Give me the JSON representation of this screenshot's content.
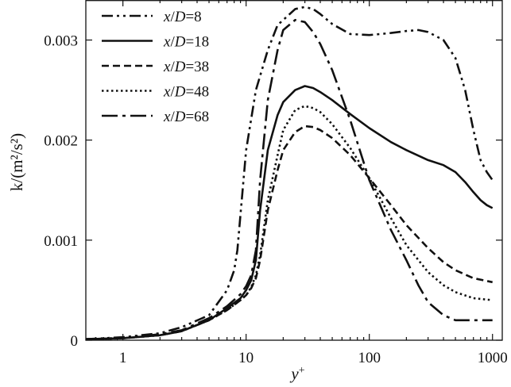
{
  "chart_data": {
    "type": "line",
    "title": "",
    "xlabel": "y",
    "xlabel_sup": "+",
    "ylabel": "k/(m²/s²)",
    "xscale": "log",
    "xlim": [
      0.5,
      1200
    ],
    "ylim": [
      0,
      0.0034
    ],
    "xticks": [
      1,
      10,
      100,
      1000
    ],
    "xtick_labels": [
      "1",
      "10",
      "100",
      "1000"
    ],
    "yticks": [
      0,
      0.001,
      0.002,
      0.003
    ],
    "ytick_labels": [
      "0",
      "0.001",
      "0.002",
      "0.003"
    ],
    "legend_position": "top-left",
    "series": [
      {
        "name": "x/D=8",
        "name_parts": [
          "x",
          "/",
          "D",
          "=8"
        ],
        "dash": "dash-dot-dot",
        "x": [
          0.5,
          1,
          2,
          3,
          5,
          7,
          8,
          8.5,
          10,
          12,
          15,
          18,
          20,
          25,
          30,
          35,
          40,
          50,
          70,
          100,
          150,
          200,
          250,
          300,
          400,
          500,
          600,
          700,
          800,
          900,
          1000
        ],
        "y": [
          1e-05,
          3e-05,
          7e-05,
          0.00013,
          0.00025,
          0.0005,
          0.0007,
          0.0009,
          0.0019,
          0.0025,
          0.0029,
          0.00315,
          0.0032,
          0.00331,
          0.00333,
          0.00331,
          0.00326,
          0.00316,
          0.00306,
          0.00305,
          0.00307,
          0.00309,
          0.0031,
          0.00308,
          0.003,
          0.00282,
          0.0025,
          0.0021,
          0.0018,
          0.00168,
          0.0016
        ]
      },
      {
        "name": "x/D=18",
        "name_parts": [
          "x",
          "/",
          "D",
          "=18"
        ],
        "dash": "solid",
        "x": [
          0.5,
          1,
          2,
          3,
          5,
          7,
          9,
          10,
          11,
          12,
          13,
          15,
          18,
          20,
          25,
          30,
          35,
          40,
          50,
          70,
          100,
          150,
          200,
          300,
          400,
          500,
          600,
          700,
          800,
          900,
          1000
        ],
        "y": [
          1e-05,
          2e-05,
          5e-05,
          9e-05,
          0.0002,
          0.00032,
          0.00042,
          0.0005,
          0.0006,
          0.0008,
          0.0013,
          0.0019,
          0.00225,
          0.00238,
          0.0025,
          0.00254,
          0.00252,
          0.00248,
          0.0024,
          0.00226,
          0.00212,
          0.00198,
          0.0019,
          0.0018,
          0.00175,
          0.00168,
          0.00158,
          0.00148,
          0.0014,
          0.00135,
          0.00132
        ]
      },
      {
        "name": "x/D=38",
        "name_parts": [
          "x",
          "/",
          "D",
          "=38"
        ],
        "dash": "dashed",
        "x": [
          0.5,
          1,
          2,
          3,
          5,
          7,
          9,
          10,
          11,
          12,
          13,
          15,
          18,
          20,
          25,
          30,
          35,
          40,
          50,
          70,
          100,
          150,
          200,
          300,
          400,
          500,
          700,
          1000
        ],
        "y": [
          1e-05,
          2e-05,
          5e-05,
          9e-05,
          0.0002,
          0.0003,
          0.0004,
          0.00045,
          0.00052,
          0.00062,
          0.0008,
          0.0013,
          0.0017,
          0.0019,
          0.00208,
          0.00214,
          0.00213,
          0.0021,
          0.00202,
          0.00185,
          0.00162,
          0.00135,
          0.00115,
          0.00092,
          0.00078,
          0.0007,
          0.00062,
          0.00058
        ]
      },
      {
        "name": "x/D=48",
        "name_parts": [
          "x",
          "/",
          "D",
          "=48"
        ],
        "dash": "dotted",
        "x": [
          0.5,
          1,
          2,
          3,
          5,
          7,
          9,
          10,
          11,
          12,
          13,
          15,
          18,
          20,
          25,
          30,
          35,
          40,
          50,
          70,
          100,
          150,
          200,
          300,
          400,
          500,
          700,
          1000
        ],
        "y": [
          1e-05,
          2e-05,
          5e-05,
          9e-05,
          0.0002,
          0.0003,
          0.0004,
          0.00045,
          0.00053,
          0.00065,
          0.00085,
          0.0014,
          0.00185,
          0.0021,
          0.0023,
          0.00234,
          0.00232,
          0.00228,
          0.00216,
          0.00192,
          0.00162,
          0.00122,
          0.00095,
          0.00068,
          0.00055,
          0.00048,
          0.00042,
          0.0004
        ]
      },
      {
        "name": "x/D=68",
        "name_parts": [
          "x",
          "/",
          "D",
          "=68"
        ],
        "dash": "long-dash-dot",
        "x": [
          0.5,
          1,
          2,
          3,
          5,
          7,
          9,
          10,
          11,
          12,
          13,
          15,
          18,
          20,
          25,
          30,
          35,
          40,
          50,
          70,
          100,
          150,
          200,
          250,
          300,
          400,
          500,
          700,
          1000
        ],
        "y": [
          1e-05,
          2e-05,
          6e-05,
          0.0001,
          0.00022,
          0.00034,
          0.00046,
          0.00054,
          0.00065,
          0.0009,
          0.0016,
          0.0024,
          0.0029,
          0.0031,
          0.0032,
          0.00318,
          0.00308,
          0.00296,
          0.0027,
          0.0022,
          0.0016,
          0.0011,
          0.0008,
          0.00055,
          0.00038,
          0.00025,
          0.0002,
          0.0002,
          0.0002
        ]
      }
    ]
  }
}
